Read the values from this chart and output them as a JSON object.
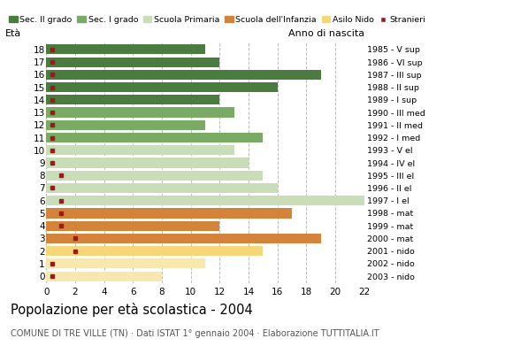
{
  "ages": [
    18,
    17,
    16,
    15,
    14,
    13,
    12,
    11,
    10,
    9,
    8,
    7,
    6,
    5,
    4,
    3,
    2,
    1,
    0
  ],
  "values": [
    11,
    12,
    19,
    16,
    12,
    13,
    11,
    15,
    13,
    14,
    15,
    16,
    22,
    17,
    12,
    19,
    15,
    11,
    8
  ],
  "stranieri": [
    0.4,
    0.4,
    0.4,
    0.4,
    0.4,
    0.4,
    0.4,
    0.4,
    0.4,
    0.4,
    1.0,
    0.4,
    1.0,
    1.0,
    1.0,
    2.0,
    2.0,
    0.4,
    0.4
  ],
  "right_labels": [
    "1985 - V sup",
    "1986 - VI sup",
    "1987 - III sup",
    "1988 - II sup",
    "1989 - I sup",
    "1990 - III med",
    "1991 - II med",
    "1992 - I med",
    "1993 - V el",
    "1994 - IV el",
    "1995 - III el",
    "1996 - II el",
    "1997 - I el",
    "1998 - mat",
    "1999 - mat",
    "2000 - mat",
    "2001 - nido",
    "2002 - nido",
    "2003 - nido"
  ],
  "bar_colors": [
    "#4a7c40",
    "#4a7c40",
    "#4a7c40",
    "#4a7c40",
    "#4a7c40",
    "#7aab65",
    "#7aab65",
    "#7aab65",
    "#c8ddb8",
    "#c8ddb8",
    "#c8ddb8",
    "#c8ddb8",
    "#c8ddb8",
    "#d4843a",
    "#d4843a",
    "#d4843a",
    "#f5d77a",
    "#f8e8b0",
    "#f8e8b0"
  ],
  "stranieri_color": "#9e1a1a",
  "legend_labels": [
    "Sec. II grado",
    "Sec. I grado",
    "Scuola Primaria",
    "Scuola dell'Infanzia",
    "Asilo Nido",
    "Stranieri"
  ],
  "legend_colors": [
    "#4a7c40",
    "#7aab65",
    "#c8ddb8",
    "#d4843a",
    "#f5d77a",
    "#9e1a1a"
  ],
  "title": "Popolazione per età scolastica - 2004",
  "subtitle": "COMUNE DI TRE VILLE (TN) · Dati ISTAT 1° gennaio 2004 · Elaborazione TUTTITALIA.IT",
  "eta_label": "Età",
  "anno_label": "Anno di nascita",
  "xlim": [
    0,
    22
  ],
  "xticks": [
    0,
    2,
    4,
    6,
    8,
    10,
    12,
    14,
    16,
    18,
    20,
    22
  ],
  "grid_color": "#bbbbbb",
  "bar_height": 0.78
}
